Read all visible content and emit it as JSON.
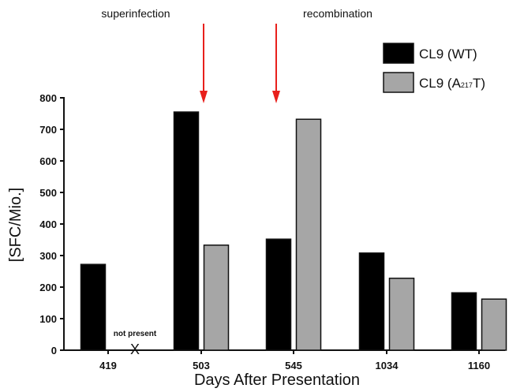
{
  "chart_data": {
    "type": "bar",
    "categories": [
      "419",
      "503",
      "545",
      "1034",
      "1160"
    ],
    "series": [
      {
        "name": "CL9 (WT)",
        "values": [
          272,
          755,
          352,
          308,
          182
        ],
        "color": "#000000"
      },
      {
        "name": "CL9 (A217T)",
        "values": [
          null,
          333,
          732,
          228,
          162
        ],
        "color": "#a6a6a6"
      }
    ],
    "legend_entries": [
      {
        "prefix": "CL9 (WT)",
        "sub": "",
        "suffix": ""
      },
      {
        "prefix": "CL9 (A",
        "sub": "217",
        "suffix": "T)"
      }
    ],
    "xlabel": "Days After Presentation",
    "ylabel": "[SFC/Mio.]",
    "ylim": [
      0,
      800
    ],
    "yticks": [
      0,
      100,
      200,
      300,
      400,
      500,
      600,
      700,
      800
    ],
    "grid": false,
    "legend_position": "top-right",
    "missing_marker": {
      "category": "419",
      "series": "CL9 (A217T)",
      "symbol": "X",
      "label": "not present"
    },
    "annotations": [
      {
        "text": "superinfection",
        "between": [
          "503",
          "545"
        ],
        "arrow_color": "#e8201c"
      },
      {
        "text": "recombination",
        "at_group": "545",
        "arrow_color": "#e8201c"
      }
    ]
  }
}
